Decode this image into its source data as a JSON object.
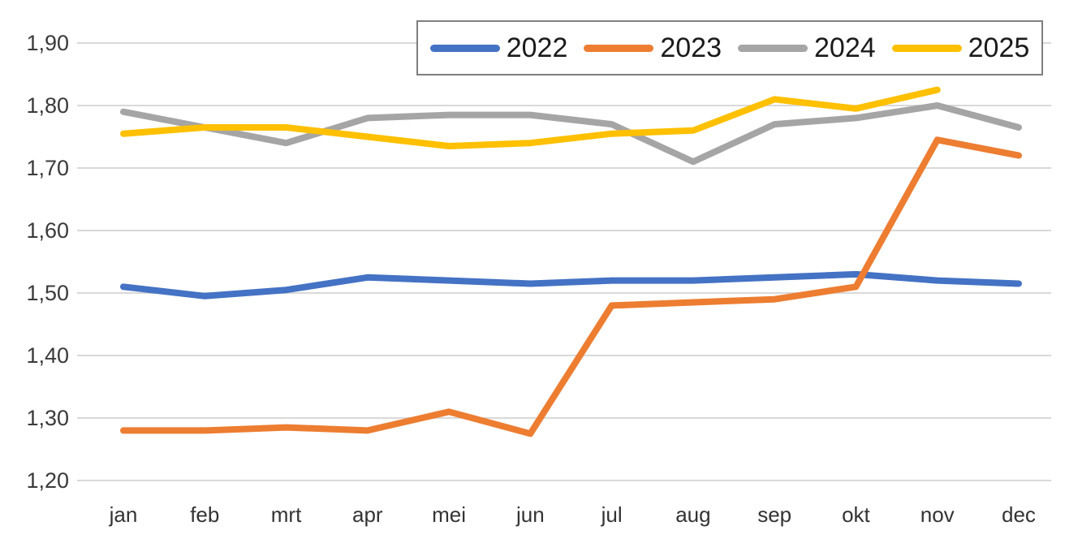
{
  "chart_data": {
    "type": "line",
    "title": "",
    "xlabel": "",
    "ylabel": "",
    "categories": [
      "jan",
      "feb",
      "mrt",
      "apr",
      "mei",
      "jun",
      "jul",
      "aug",
      "sep",
      "okt",
      "nov",
      "dec"
    ],
    "series": [
      {
        "name": "2022",
        "color": "#4472C4",
        "values": [
          1.51,
          1.495,
          1.505,
          1.525,
          1.52,
          1.515,
          1.52,
          1.52,
          1.525,
          1.53,
          1.52,
          1.515
        ]
      },
      {
        "name": "2023",
        "color": "#ED7D31",
        "values": [
          1.28,
          1.28,
          1.285,
          1.28,
          1.31,
          1.275,
          1.48,
          1.485,
          1.49,
          1.51,
          1.745,
          1.72
        ]
      },
      {
        "name": "2024",
        "color": "#A5A5A5",
        "values": [
          1.79,
          1.765,
          1.74,
          1.78,
          1.785,
          1.785,
          1.77,
          1.71,
          1.77,
          1.78,
          1.8,
          1.765
        ]
      },
      {
        "name": "2025",
        "color": "#FFC000",
        "values": [
          1.755,
          1.765,
          1.765,
          1.75,
          1.735,
          1.74,
          1.755,
          1.76,
          1.81,
          1.795,
          1.825,
          null
        ]
      }
    ],
    "ylim": [
      1.2,
      1.9
    ],
    "ytick_step": 0.1,
    "ytick_labels": [
      "1,90",
      "1,80",
      "1,70",
      "1,60",
      "1,50",
      "1,40",
      "1,30",
      "1,20"
    ],
    "decimal_separator": ",",
    "grid": "horizontal",
    "legend_position": "top-center-overlapping-plot",
    "legend_entries": [
      "2022",
      "2023",
      "2024",
      "2025"
    ]
  },
  "colors": {
    "background": "#ffffff",
    "gridline": "#d9d9d9",
    "axis_text": "#3a3a3a",
    "legend_border": "#7f7f7f",
    "legend_text": "#1a1a1a",
    "series_2022": "#4472C4",
    "series_2023": "#ED7D31",
    "series_2024": "#A5A5A5",
    "series_2025": "#FFC000"
  },
  "line_style": {
    "stroke_width": 8,
    "linejoin": "round",
    "linecap": "round"
  }
}
